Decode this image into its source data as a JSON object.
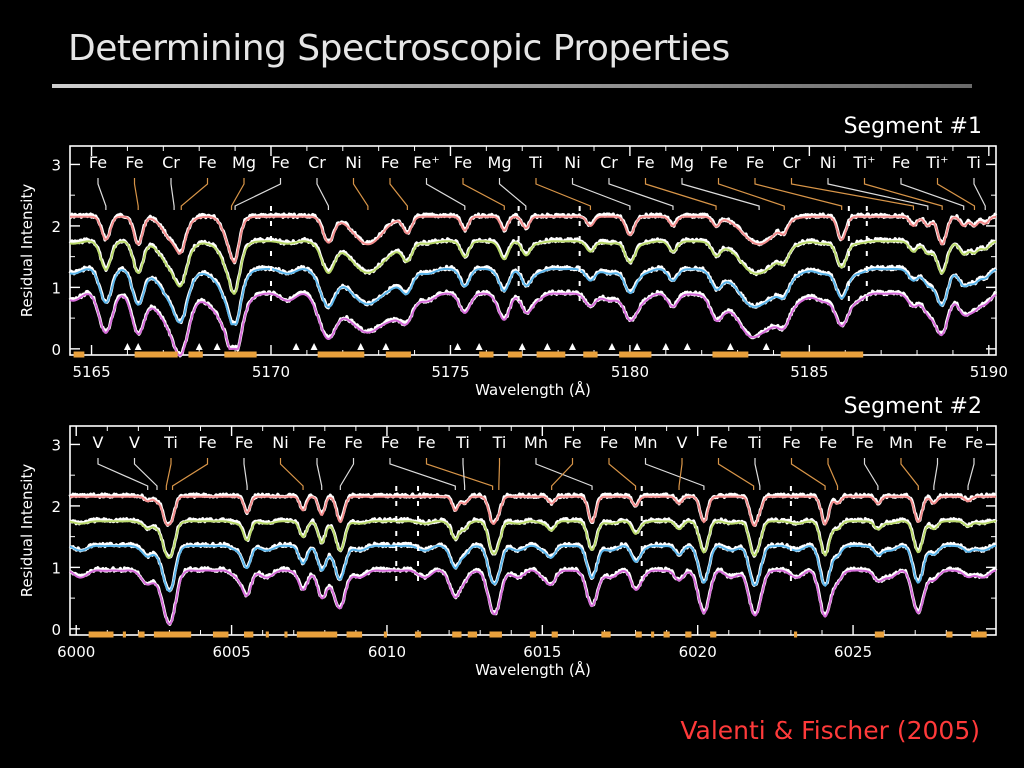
{
  "slide": {
    "title": "Determining Spectroscopic Properties",
    "citation": "Valenti & Fischer (2005)"
  },
  "colors": {
    "background": "#000000",
    "series": [
      "#f28c8c",
      "#b9d86a",
      "#5ab4ea",
      "#d46ad8"
    ],
    "observed": "#ffffff",
    "mask": "#e8a03c",
    "leader_white": "#dddddd",
    "leader_orange": "#d89548",
    "citation": "#ff3a3a"
  },
  "chart_data": [
    {
      "type": "line",
      "segment_label": "Segment #1",
      "xlabel": "Wavelength (Å)",
      "ylabel": "Residual Intensity",
      "xlim": [
        5164.4,
        5190.2
      ],
      "ylim": [
        -0.1,
        3.3
      ],
      "xticks": [
        5165,
        5170,
        5175,
        5180,
        5185,
        5190
      ],
      "yticks": [
        0,
        1,
        2,
        3
      ],
      "offsets": [
        2.15,
        1.75,
        1.3,
        0.9
      ],
      "lines": [
        {
          "label": "Fe",
          "x": 5165.4,
          "depth": 0.5,
          "width": 0.12
        },
        {
          "label": "Fe",
          "x": 5166.3,
          "depth": 0.6,
          "width": 0.12
        },
        {
          "label": "Cr",
          "x": 5167.3,
          "depth": 0.55,
          "width": 0.28
        },
        {
          "label": "Fe",
          "x": 5167.5,
          "depth": 0.35,
          "width": 0.12
        },
        {
          "label": "Mg",
          "x": 5168.9,
          "depth": 0.65,
          "width": 0.2
        },
        {
          "label": "Fe",
          "x": 5169.0,
          "depth": 0.4,
          "width": 0.1
        },
        {
          "label": "Cr",
          "x": 5171.6,
          "depth": 0.55,
          "width": 0.15
        },
        {
          "label": "Ni",
          "x": 5172.7,
          "depth": 0.6,
          "width": 0.4
        },
        {
          "label": "Fe",
          "x": 5173.8,
          "depth": 0.35,
          "width": 0.12
        },
        {
          "label": "Fe+",
          "x": 5175.4,
          "depth": 0.3,
          "width": 0.1
        },
        {
          "label": "Fe",
          "x": 5176.5,
          "depth": 0.3,
          "width": 0.1
        },
        {
          "label": "Mg",
          "x": 5177.1,
          "depth": 0.25,
          "width": 0.1
        },
        {
          "label": "Ti",
          "x": 5178.9,
          "depth": 0.2,
          "width": 0.1
        },
        {
          "label": "Ni",
          "x": 5180.0,
          "depth": 0.4,
          "width": 0.12
        },
        {
          "label": "Cr",
          "x": 5181.2,
          "depth": 0.2,
          "width": 0.1
        },
        {
          "label": "Fe",
          "x": 5182.4,
          "depth": 0.2,
          "width": 0.1
        },
        {
          "label": "Mg",
          "x": 5183.6,
          "depth": 0.6,
          "width": 0.45
        },
        {
          "label": "Fe",
          "x": 5184.3,
          "depth": 0.2,
          "width": 0.1
        },
        {
          "label": "Fe",
          "x": 5185.9,
          "depth": 0.5,
          "width": 0.12
        },
        {
          "label": "Cr",
          "x": 5187.9,
          "depth": 0.2,
          "width": 0.1
        },
        {
          "label": "Ni",
          "x": 5188.3,
          "depth": 0.2,
          "width": 0.1
        },
        {
          "label": "Ti+",
          "x": 5188.7,
          "depth": 0.6,
          "width": 0.12
        },
        {
          "label": "Fe",
          "x": 5189.3,
          "depth": 0.2,
          "width": 0.1
        },
        {
          "label": "Ti+",
          "x": 5189.6,
          "depth": 0.2,
          "width": 0.1
        },
        {
          "label": "Ti",
          "x": 5189.9,
          "depth": 0.15,
          "width": 0.1
        }
      ],
      "markers": [
        5166.0,
        5166.3,
        5168.0,
        5168.5,
        5170.7,
        5171.2,
        5172.5,
        5173.2,
        5175.2,
        5175.8,
        5177.0,
        5177.7,
        5178.4,
        5179.5,
        5180.2,
        5181.0,
        5181.6,
        5182.8,
        5183.8
      ],
      "mask_ranges": [
        [
          5164.5,
          5164.8
        ],
        [
          5166.2,
          5167.4
        ],
        [
          5167.7,
          5168.1
        ],
        [
          5168.7,
          5169.6
        ],
        [
          5171.3,
          5172.6
        ],
        [
          5173.2,
          5173.9
        ],
        [
          5175.8,
          5176.2
        ],
        [
          5176.6,
          5177.0
        ],
        [
          5177.4,
          5178.2
        ],
        [
          5178.7,
          5179.1
        ],
        [
          5179.7,
          5180.6
        ],
        [
          5182.3,
          5183.3
        ],
        [
          5184.2,
          5186.5
        ]
      ],
      "mask_gaps": [
        5170.0,
        5176.9,
        5178.6,
        5186.1,
        5186.6
      ]
    },
    {
      "type": "line",
      "segment_label": "Segment #2",
      "xlabel": "Wavelength (Å)",
      "ylabel": "Residual Intensity",
      "xlim": [
        5999.8,
        6029.6
      ],
      "ylim": [
        -0.1,
        3.3
      ],
      "xticks": [
        6000,
        6005,
        6010,
        6015,
        6020,
        6025
      ],
      "yticks": [
        0,
        1,
        2,
        3
      ],
      "offsets": [
        2.15,
        1.75,
        1.35,
        0.95
      ],
      "lines": [
        {
          "label": "V",
          "x": 6002.3,
          "depth": 0.1,
          "width": 0.1
        },
        {
          "label": "V",
          "x": 6002.6,
          "depth": 0.1,
          "width": 0.1
        },
        {
          "label": "Ti",
          "x": 6002.9,
          "depth": 0.55,
          "width": 0.12
        },
        {
          "label": "Fe",
          "x": 6003.1,
          "depth": 0.35,
          "width": 0.1
        },
        {
          "label": "Fe",
          "x": 6005.5,
          "depth": 0.35,
          "width": 0.1
        },
        {
          "label": "Ni",
          "x": 6007.3,
          "depth": 0.3,
          "width": 0.1
        },
        {
          "label": "Fe",
          "x": 6007.9,
          "depth": 0.4,
          "width": 0.1
        },
        {
          "label": "Fe",
          "x": 6008.5,
          "depth": 0.55,
          "width": 0.12
        },
        {
          "label": "Fe",
          "x": 6012.2,
          "depth": 0.3,
          "width": 0.1
        },
        {
          "label": "Fe",
          "x": 6013.4,
          "depth": 0.55,
          "width": 0.12
        },
        {
          "label": "Ti",
          "x": 6012.5,
          "depth": 0.15,
          "width": 0.1
        },
        {
          "label": "Ti",
          "x": 6013.6,
          "depth": 0.25,
          "width": 0.1
        },
        {
          "label": "Mn",
          "x": 6016.6,
          "depth": 0.55,
          "width": 0.12
        },
        {
          "label": "Fe",
          "x": 6015.3,
          "depth": 0.15,
          "width": 0.1
        },
        {
          "label": "Fe",
          "x": 6018.0,
          "depth": 0.2,
          "width": 0.1
        },
        {
          "label": "Mn",
          "x": 6020.2,
          "depth": 0.55,
          "width": 0.12
        },
        {
          "label": "V",
          "x": 6019.4,
          "depth": 0.15,
          "width": 0.1
        },
        {
          "label": "Fe",
          "x": 6021.8,
          "depth": 0.6,
          "width": 0.12
        },
        {
          "label": "Ti",
          "x": 6022.0,
          "depth": 0.2,
          "width": 0.1
        },
        {
          "label": "Fe",
          "x": 6024.1,
          "depth": 0.6,
          "width": 0.12
        },
        {
          "label": "Fe",
          "x": 6024.5,
          "depth": 0.15,
          "width": 0.1
        },
        {
          "label": "Fe",
          "x": 6025.8,
          "depth": 0.15,
          "width": 0.1
        },
        {
          "label": "Mn",
          "x": 6027.1,
          "depth": 0.55,
          "width": 0.12
        },
        {
          "label": "Fe",
          "x": 6027.6,
          "depth": 0.15,
          "width": 0.1
        },
        {
          "label": "Fe",
          "x": 6028.7,
          "depth": 0.1,
          "width": 0.1
        }
      ],
      "markers": [],
      "mask_ranges": [
        [
          6000.4,
          6001.2
        ],
        [
          6001.5,
          6001.6
        ],
        [
          6002.0,
          6002.2
        ],
        [
          6002.5,
          6003.7
        ],
        [
          6004.4,
          6004.9
        ],
        [
          6005.4,
          6005.7
        ],
        [
          6006.1,
          6006.2
        ],
        [
          6006.7,
          6006.8
        ],
        [
          6007.1,
          6008.4
        ],
        [
          6008.7,
          6009.2
        ],
        [
          6009.9,
          6010.0
        ],
        [
          6010.9,
          6011.1
        ],
        [
          6012.1,
          6012.4
        ],
        [
          6012.6,
          6012.9
        ],
        [
          6013.3,
          6013.7
        ],
        [
          6014.6,
          6014.8
        ],
        [
          6015.3,
          6015.5
        ],
        [
          6016.9,
          6017.2
        ],
        [
          6018.0,
          6018.2
        ],
        [
          6018.5,
          6018.6
        ],
        [
          6018.9,
          6019.1
        ],
        [
          6019.6,
          6019.8
        ],
        [
          6020.4,
          6020.6
        ],
        [
          6023.1,
          6023.2
        ],
        [
          6025.7,
          6026.0
        ],
        [
          6028.0,
          6028.2
        ],
        [
          6028.8,
          6029.3
        ]
      ],
      "mask_gaps": [
        6010.3,
        6011.0,
        6018.2,
        6023.0
      ]
    }
  ],
  "panels": [
    {
      "segment_label": "Segment #1",
      "ion_labels": [
        "Fe",
        "Fe",
        "Cr",
        "Fe",
        "Mg",
        "Fe",
        "Cr",
        "Ni",
        "Fe",
        "Fe⁺",
        "Fe",
        "Mg",
        "Ti",
        "Ni",
        "Cr",
        "Fe",
        "Mg",
        "Fe",
        "Fe",
        "Cr",
        "Ni",
        "Ti⁺",
        "Fe",
        "Ti⁺",
        "Ti"
      ],
      "ion_tick_x": [
        5165.4,
        5166.3,
        5167.3,
        5167.5,
        5168.9,
        5169.0,
        5171.6,
        5172.7,
        5173.8,
        5175.4,
        5176.5,
        5177.1,
        5178.9,
        5180.0,
        5181.2,
        5182.4,
        5183.6,
        5184.3,
        5185.9,
        5187.9,
        5188.3,
        5188.7,
        5189.3,
        5189.6,
        5189.9
      ],
      "leader_colors": [
        "w",
        "o",
        "w",
        "o",
        "o",
        "w",
        "w",
        "o",
        "o",
        "w",
        "o",
        "w",
        "o",
        "w",
        "w",
        "o",
        "w",
        "o",
        "o",
        "o",
        "w",
        "o",
        "w",
        "o",
        "w"
      ]
    },
    {
      "segment_label": "Segment #2",
      "ion_labels": [
        "V",
        "V",
        "Ti",
        "Fe",
        "Fe",
        "Ni",
        "Fe",
        "Fe",
        "Fe",
        "Fe",
        "Ti",
        "Ti",
        "Mn",
        "Fe",
        "Fe",
        "Mn",
        "V",
        "Fe",
        "Ti",
        "Fe",
        "Fe",
        "Fe",
        "Mn",
        "Fe",
        "Fe"
      ],
      "leader_colors": [
        "w",
        "w",
        "o",
        "o",
        "w",
        "o",
        "w",
        "w",
        "w",
        "o",
        "w",
        "o",
        "w",
        "o",
        "o",
        "w",
        "o",
        "o",
        "w",
        "o",
        "o",
        "w",
        "o",
        "w",
        "w"
      ]
    }
  ]
}
